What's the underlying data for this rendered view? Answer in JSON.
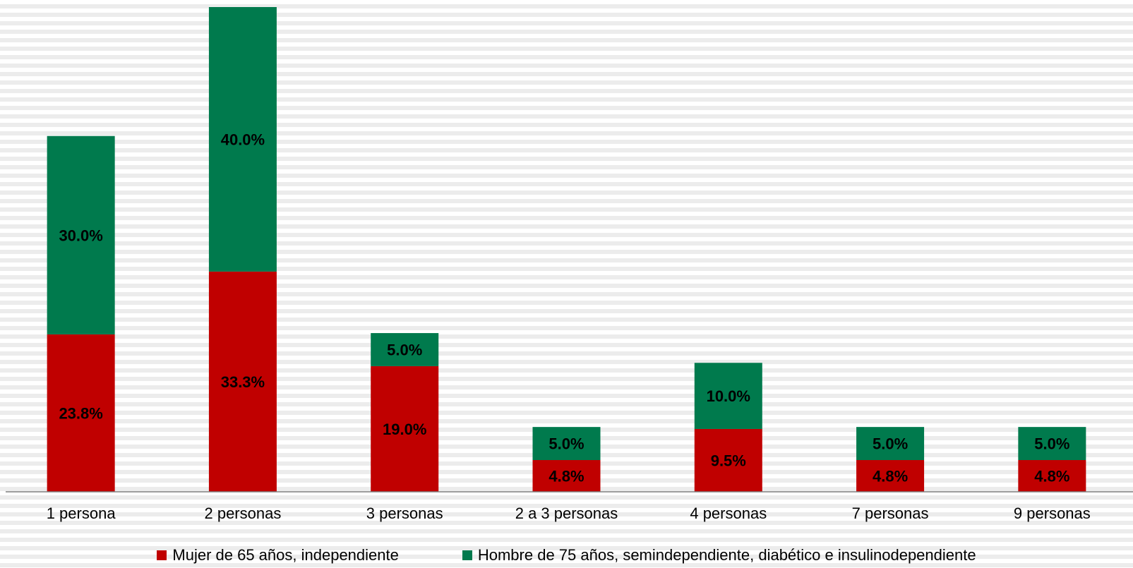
{
  "chart_data": {
    "type": "bar",
    "stacked": true,
    "title": "",
    "xlabel": "",
    "ylabel": "",
    "categories": [
      "1 persona",
      "2 personas",
      "3 personas",
      "2 a 3 personas",
      "4 personas",
      "7 personas",
      "9 personas"
    ],
    "series": [
      {
        "name": "Mujer de 65 años, independiente",
        "color": "#c00000",
        "values": [
          23.8,
          33.3,
          19.0,
          4.8,
          9.5,
          4.8,
          4.8
        ],
        "labels": [
          "23.8%",
          "33.3%",
          "19.0%",
          "4.8%",
          "9.5%",
          "4.8%",
          "4.8%"
        ]
      },
      {
        "name": "Hombre de 75 años, semindependiente, diabético e insulinodependiente",
        "color": "#007a4d",
        "values": [
          30.0,
          40.0,
          5.0,
          5.0,
          10.0,
          5.0,
          5.0
        ],
        "labels": [
          "30.0%",
          "40.0%",
          "5.0%",
          "5.0%",
          "10.0%",
          "5.0%",
          "5.0%"
        ]
      }
    ],
    "ylim": [
      0,
      73.3
    ],
    "grid": false,
    "legend_position": "bottom"
  }
}
